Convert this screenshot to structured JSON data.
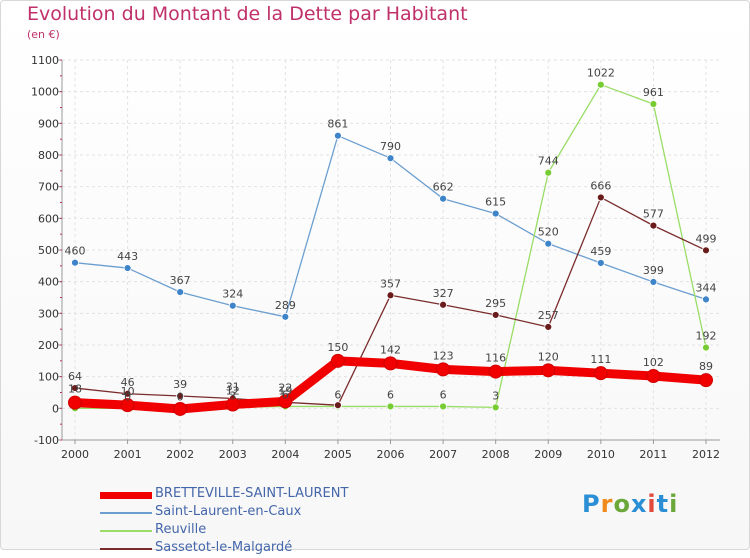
{
  "header": {
    "title": "Evolution du Montant de la Dette par Habitant",
    "subtitle": "(en €)"
  },
  "logo": {
    "text": "Proxiti",
    "colors": [
      "#2b8fd6",
      "#f08a1c",
      "#6aa83a",
      "#2b8fd6",
      "#e24a3c",
      "#2b8fd6",
      "#6aa83a"
    ]
  },
  "chart_data": {
    "type": "line",
    "title": "Evolution du Montant de la Dette par Habitant",
    "subtitle": "(en €)",
    "xlabel": "",
    "ylabel": "",
    "x": [
      2000,
      2001,
      2002,
      2003,
      2004,
      2005,
      2006,
      2007,
      2008,
      2009,
      2010,
      2011,
      2012
    ],
    "ylim": [
      -100,
      1100
    ],
    "yticks": [
      -100,
      0,
      100,
      200,
      300,
      400,
      500,
      600,
      700,
      800,
      900,
      1000,
      1100
    ],
    "grid": true,
    "legend_position": "bottom-left",
    "series": [
      {
        "name": "BRETTEVILLE-SAINT-LAURENT",
        "color": "#f00000",
        "marker_fill": "#f00000",
        "bold": true,
        "values": [
          18,
          10,
          -2,
          12,
          22,
          150,
          142,
          123,
          116,
          120,
          111,
          102,
          89
        ],
        "labels": [
          "18",
          "10",
          "",
          "12",
          "22",
          "150",
          "142",
          "123",
          "116",
          "120",
          "111",
          "102",
          "89"
        ]
      },
      {
        "name": "Saint-Laurent-en-Caux",
        "color": "#6c9fd0",
        "marker_fill": "#3d84c8",
        "bold": false,
        "values": [
          460,
          443,
          367,
          324,
          289,
          861,
          790,
          662,
          615,
          520,
          459,
          399,
          344
        ],
        "labels": [
          "460",
          "443",
          "367",
          "324",
          "289",
          "861",
          "790",
          "662",
          "615",
          "520",
          "459",
          "399",
          "344"
        ]
      },
      {
        "name": "Reuville",
        "color": "#99dd66",
        "marker_fill": "#77cc33",
        "bold": false,
        "values": [
          0,
          0,
          0,
          3,
          6,
          6,
          6,
          6,
          3,
          744,
          1022,
          961,
          192
        ],
        "labels": [
          "",
          "0",
          "0",
          "3",
          "6",
          "6",
          "6",
          "6",
          "3",
          "744",
          "1022",
          "961",
          "192"
        ]
      },
      {
        "name": "Sassetot-le-Malgardé",
        "color": "#7a2c2c",
        "marker_fill": "#6a1c1c",
        "bold": false,
        "values": [
          64,
          46,
          39,
          31,
          19,
          10,
          357,
          327,
          295,
          257,
          666,
          577,
          499
        ],
        "labels": [
          "64",
          "46",
          "39",
          "31",
          "19",
          "",
          "357",
          "327",
          "295",
          "257",
          "666",
          "577",
          "499"
        ]
      }
    ]
  }
}
